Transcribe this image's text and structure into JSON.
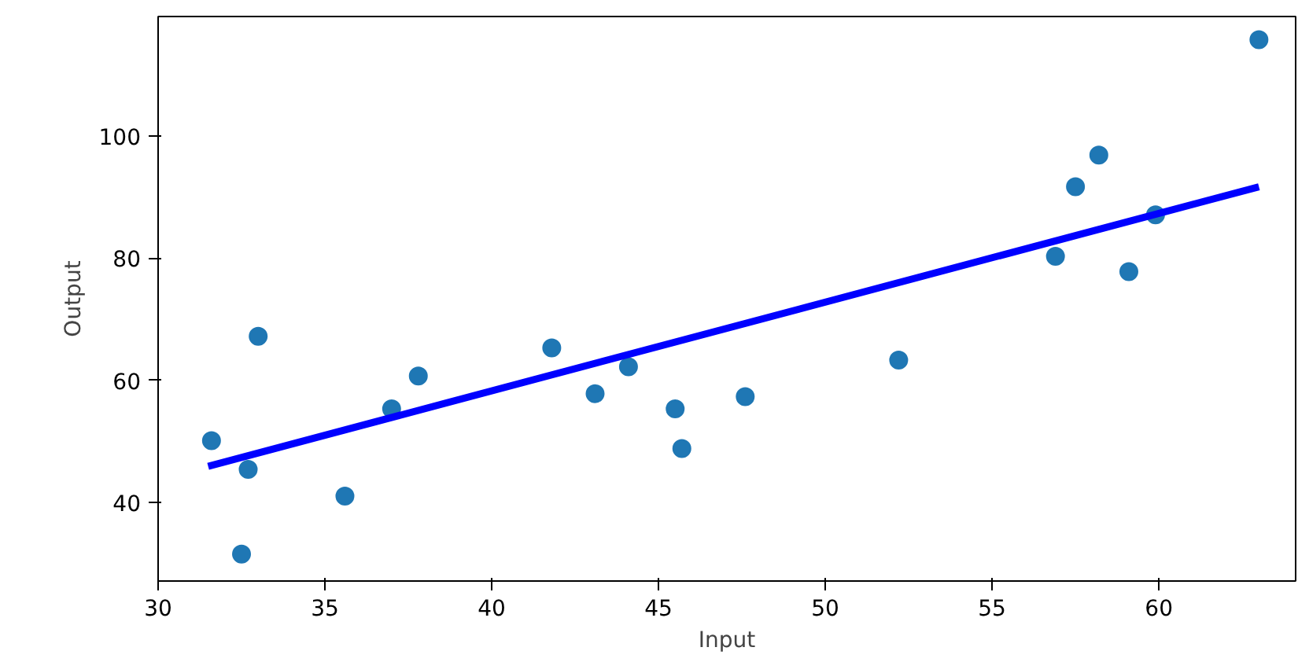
{
  "chart_data": {
    "type": "scatter",
    "xlabel": "Input",
    "ylabel": "Output",
    "xlim": [
      30,
      64.1
    ],
    "ylim": [
      27.1,
      119.6
    ],
    "xticks": [
      30,
      35,
      40,
      45,
      50,
      55,
      60
    ],
    "yticks": [
      40,
      60,
      80,
      100
    ],
    "grid": false,
    "series": [
      {
        "marker": "circle",
        "color": "#1f77b4",
        "x": [
          31.6,
          32.7,
          32.5,
          33.0,
          35.6,
          37.0,
          37.8,
          41.8,
          43.1,
          44.1,
          45.5,
          45.7,
          47.6,
          52.2,
          56.9,
          57.5,
          58.2,
          59.1,
          59.9,
          63.0
        ],
        "values": [
          50.1,
          45.4,
          31.5,
          67.2,
          41.0,
          55.3,
          60.7,
          65.3,
          57.8,
          62.2,
          55.3,
          48.8,
          57.3,
          63.3,
          80.3,
          91.7,
          96.9,
          77.8,
          87.1,
          115.8
        ]
      },
      {
        "type": "line",
        "color": "#0000ff",
        "x": [
          31.5,
          63.0
        ],
        "values": [
          45.9,
          91.7
        ]
      }
    ]
  }
}
